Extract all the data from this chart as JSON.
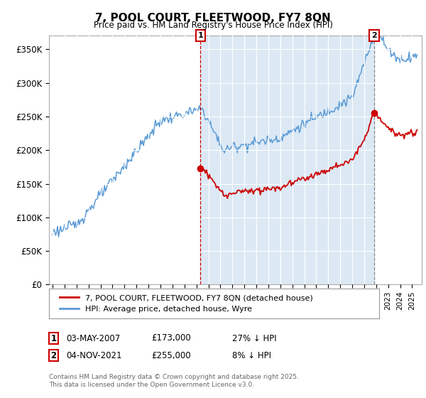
{
  "title": "7, POOL COURT, FLEETWOOD, FY7 8QN",
  "subtitle": "Price paid vs. HM Land Registry's House Price Index (HPI)",
  "ylabel_ticks": [
    "£0",
    "£50K",
    "£100K",
    "£150K",
    "£200K",
    "£250K",
    "£300K",
    "£350K"
  ],
  "ytick_values": [
    0,
    50000,
    100000,
    150000,
    200000,
    250000,
    300000,
    350000
  ],
  "ylim": [
    0,
    370000
  ],
  "xlim_start": 1994.7,
  "xlim_end": 2025.8,
  "hpi_color": "#5b9bd5",
  "property_color": "#cc0000",
  "shade_color": "#dce9f5",
  "background_color": "#dce9f5",
  "sale1_x": 2007.33,
  "sale1_y": 173000,
  "sale2_x": 2021.83,
  "sale2_y": 255000,
  "legend_property": "7, POOL COURT, FLEETWOOD, FY7 8QN (detached house)",
  "legend_hpi": "HPI: Average price, detached house, Wyre",
  "fn1_date": "03-MAY-2007",
  "fn1_price": "£173,000",
  "fn1_hpi": "27% ↓ HPI",
  "fn2_date": "04-NOV-2021",
  "fn2_price": "£255,000",
  "fn2_hpi": "8% ↓ HPI",
  "copyright": "Contains HM Land Registry data © Crown copyright and database right 2025.\nThis data is licensed under the Open Government Licence v3.0."
}
